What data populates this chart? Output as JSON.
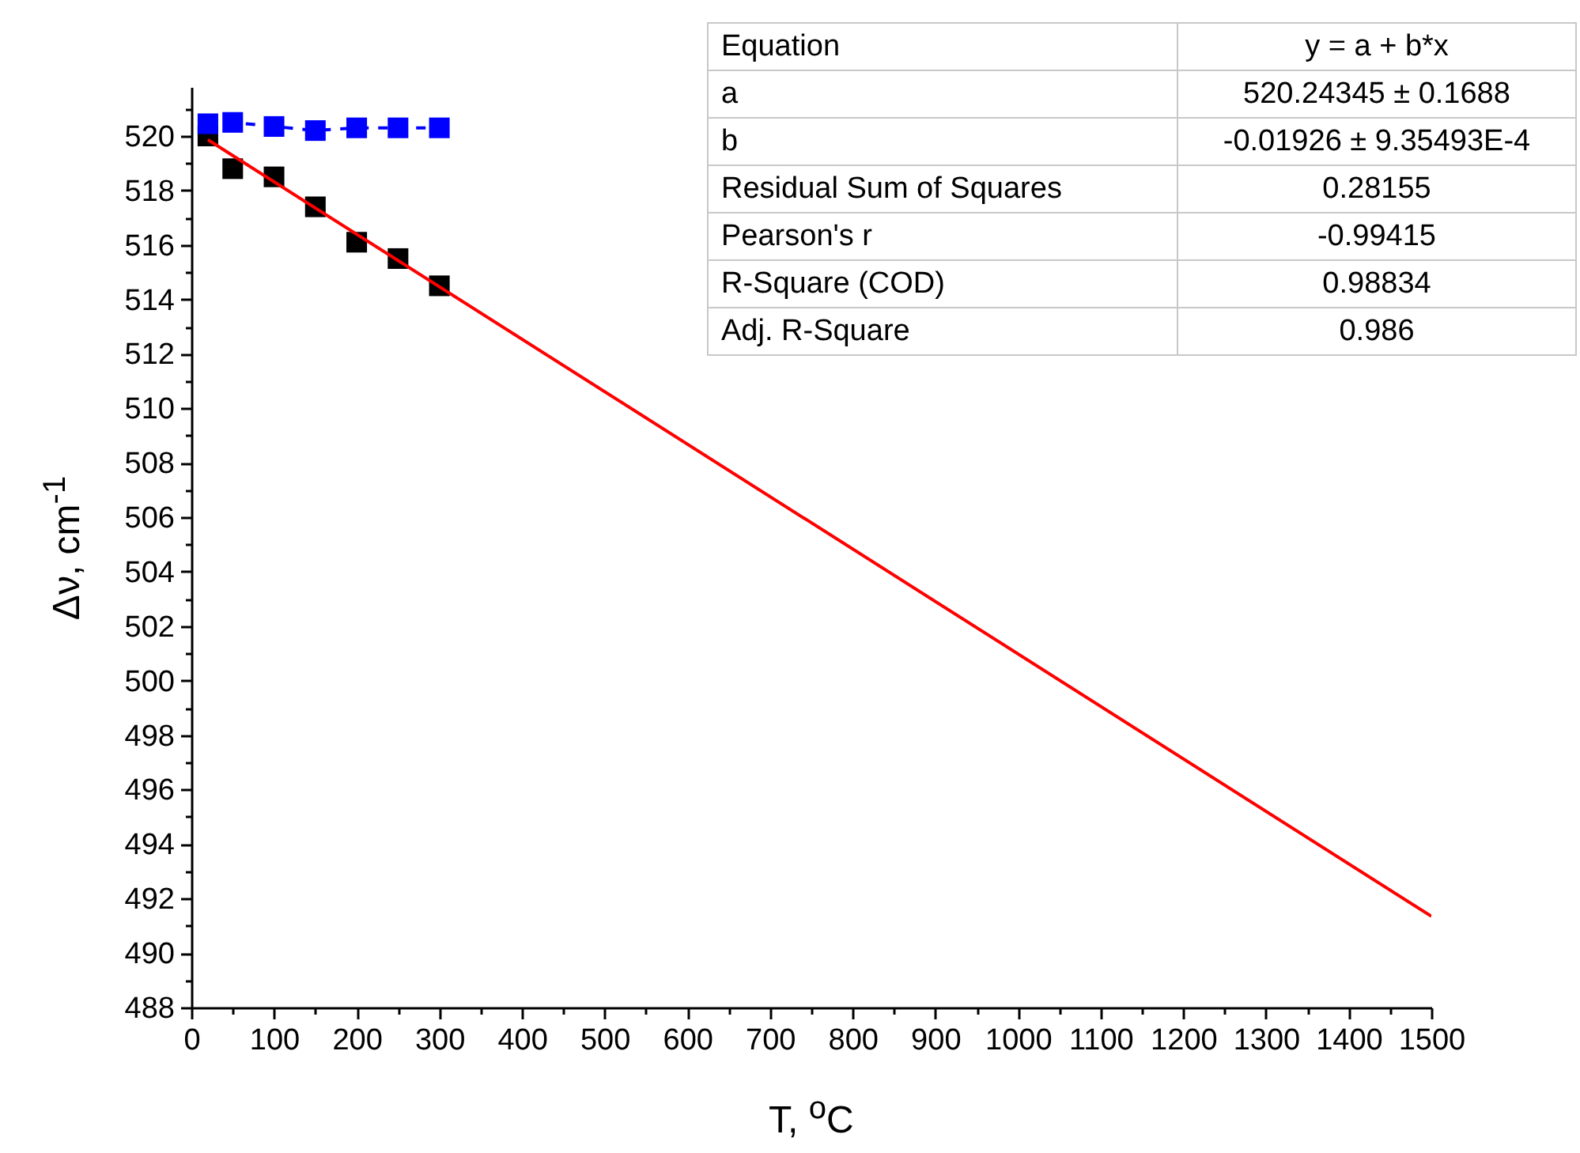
{
  "chart_data": {
    "type": "scatter",
    "xlabel": "T, $^{o}$C",
    "ylabel": "Δν, cm$^{-1}$",
    "xlim": [
      0,
      1500
    ],
    "ylim": [
      488,
      521.8
    ],
    "xticks": [
      0,
      {
        "value": 50,
        "label": null
      },
      100,
      {
        "value": 150,
        "label": null
      },
      200,
      {
        "value": 250,
        "label": null
      },
      300,
      {
        "value": 350,
        "label": null
      },
      400,
      {
        "value": 450,
        "label": null
      },
      500,
      {
        "value": 550,
        "label": null
      },
      600,
      {
        "value": 650,
        "label": null
      },
      700,
      {
        "value": 750,
        "label": null
      },
      800,
      {
        "value": 850,
        "label": null
      },
      900,
      {
        "value": 950,
        "label": null
      },
      1000,
      {
        "value": 1050,
        "label": null
      },
      1100,
      {
        "value": 1150,
        "label": null
      },
      1200,
      {
        "value": 1250,
        "label": null
      },
      1300,
      {
        "value": 1350,
        "label": null
      },
      1400,
      {
        "value": 1450,
        "label": null
      },
      1500
    ],
    "yticks": [
      488,
      {
        "value": 489,
        "label": null
      },
      490,
      {
        "value": 491,
        "label": null
      },
      492,
      {
        "value": 493,
        "label": null
      },
      494,
      {
        "value": 495,
        "label": null
      },
      496,
      {
        "value": 497,
        "label": null
      },
      498,
      {
        "value": 499,
        "label": null
      },
      500,
      {
        "value": 501,
        "label": null
      },
      502,
      {
        "value": 503,
        "label": null
      },
      504,
      {
        "value": 505,
        "label": null
      },
      506,
      {
        "value": 507,
        "label": null
      },
      508,
      {
        "value": 509,
        "label": null
      },
      510,
      {
        "value": 511,
        "label": null
      },
      512,
      {
        "value": 513,
        "label": null
      },
      514,
      {
        "value": 515,
        "label": null
      },
      516,
      {
        "value": 517,
        "label": null
      },
      518,
      {
        "value": 519,
        "label": null
      },
      520,
      {
        "value": 521,
        "label": null
      }
    ],
    "x": [
      20,
      50,
      100,
      150,
      200,
      250,
      300
    ],
    "marker": "square",
    "grid": false,
    "series": [
      {
        "color": "#000000",
        "values": [
          520.0,
          518.8,
          518.5,
          517.4,
          516.1,
          515.5,
          514.5
        ]
      },
      {
        "type": "line",
        "color": "#0000ff",
        "line_style": "dashed",
        "values": [
          520.45,
          520.5,
          520.35,
          520.2,
          520.3,
          520.3,
          520.3
        ]
      },
      {
        "type": "line",
        "color": "#ff0000",
        "marker": "none",
        "line_style": "solid",
        "x": [
          20,
          1500
        ],
        "values": [
          519.86,
          491.35
        ]
      }
    ],
    "annotations": [
      "Equation",
      "y = a + b*x",
      "a",
      "520.24345 ± 0.1688",
      "b",
      "-0.01926 ± 9.35493E-4",
      "Residual Sum of Squares",
      "0.28155",
      "Pearson's r",
      "-0.99415",
      "R-Square (COD)",
      "0.98834",
      "Adj. R-Square",
      "0.986"
    ]
  }
}
